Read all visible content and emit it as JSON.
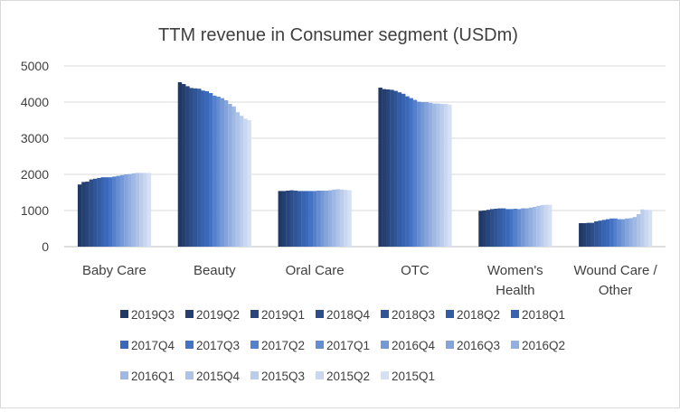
{
  "chart_data": {
    "type": "bar",
    "title": "TTM revenue in Consumer segment  (USDm)",
    "xlabel": "",
    "ylabel": "",
    "ylim": [
      0,
      5000
    ],
    "yticks": [
      0,
      1000,
      2000,
      3000,
      4000,
      5000
    ],
    "grid": true,
    "legend_position": "bottom",
    "categories": [
      [
        "Baby Care"
      ],
      [
        "Beauty"
      ],
      [
        "Oral Care"
      ],
      [
        "OTC"
      ],
      [
        "Women's",
        "Health"
      ],
      [
        "Wound Care /",
        "Other"
      ]
    ],
    "series": [
      {
        "name": "2019Q3",
        "color": "#203864",
        "values": [
          1720,
          4550,
          1540,
          4400,
          990,
          650
        ]
      },
      {
        "name": "2019Q2",
        "color": "#243f70",
        "values": [
          1790,
          4500,
          1540,
          4360,
          1000,
          650
        ]
      },
      {
        "name": "2019Q1",
        "color": "#28467c",
        "values": [
          1800,
          4440,
          1550,
          4350,
          1020,
          660
        ]
      },
      {
        "name": "2018Q4",
        "color": "#2d4e89",
        "values": [
          1860,
          4390,
          1560,
          4340,
          1040,
          660
        ]
      },
      {
        "name": "2018Q3",
        "color": "#305596",
        "values": [
          1880,
          4380,
          1550,
          4310,
          1050,
          700
        ]
      },
      {
        "name": "2018Q2",
        "color": "#335ca3",
        "values": [
          1900,
          4370,
          1540,
          4270,
          1060,
          720
        ]
      },
      {
        "name": "2018Q1",
        "color": "#3763b0",
        "values": [
          1920,
          4320,
          1540,
          4230,
          1060,
          740
        ]
      },
      {
        "name": "2017Q4",
        "color": "#3b69b9",
        "values": [
          1920,
          4300,
          1540,
          4160,
          1040,
          760
        ]
      },
      {
        "name": "2017Q3",
        "color": "#4472c4",
        "values": [
          1920,
          4250,
          1540,
          4110,
          1040,
          780
        ]
      },
      {
        "name": "2017Q2",
        "color": "#5580cb",
        "values": [
          1940,
          4180,
          1540,
          4060,
          1050,
          780
        ]
      },
      {
        "name": "2017Q1",
        "color": "#658dd1",
        "values": [
          1960,
          4150,
          1550,
          4010,
          1040,
          760
        ]
      },
      {
        "name": "2016Q4",
        "color": "#7598d6",
        "values": [
          1980,
          4110,
          1550,
          4000,
          1060,
          760
        ]
      },
      {
        "name": "2016Q3",
        "color": "#85a4db",
        "values": [
          2000,
          4050,
          1550,
          4000,
          1060,
          780
        ]
      },
      {
        "name": "2016Q2",
        "color": "#93aee0",
        "values": [
          2010,
          3950,
          1560,
          3980,
          1080,
          790
        ]
      },
      {
        "name": "2016Q1",
        "color": "#a0b8e4",
        "values": [
          2030,
          3880,
          1580,
          3960,
          1100,
          820
        ]
      },
      {
        "name": "2015Q4",
        "color": "#aec3e8",
        "values": [
          2040,
          3720,
          1590,
          3960,
          1130,
          900
        ]
      },
      {
        "name": "2015Q3",
        "color": "#bccdec",
        "values": [
          2040,
          3620,
          1580,
          3950,
          1150,
          1030
        ]
      },
      {
        "name": "2015Q2",
        "color": "#c9d7f0",
        "values": [
          2040,
          3540,
          1570,
          3950,
          1160,
          1020
        ]
      },
      {
        "name": "2015Q1",
        "color": "#d6e0f4",
        "values": [
          2040,
          3500,
          1560,
          3930,
          1160,
          1020
        ]
      }
    ]
  }
}
